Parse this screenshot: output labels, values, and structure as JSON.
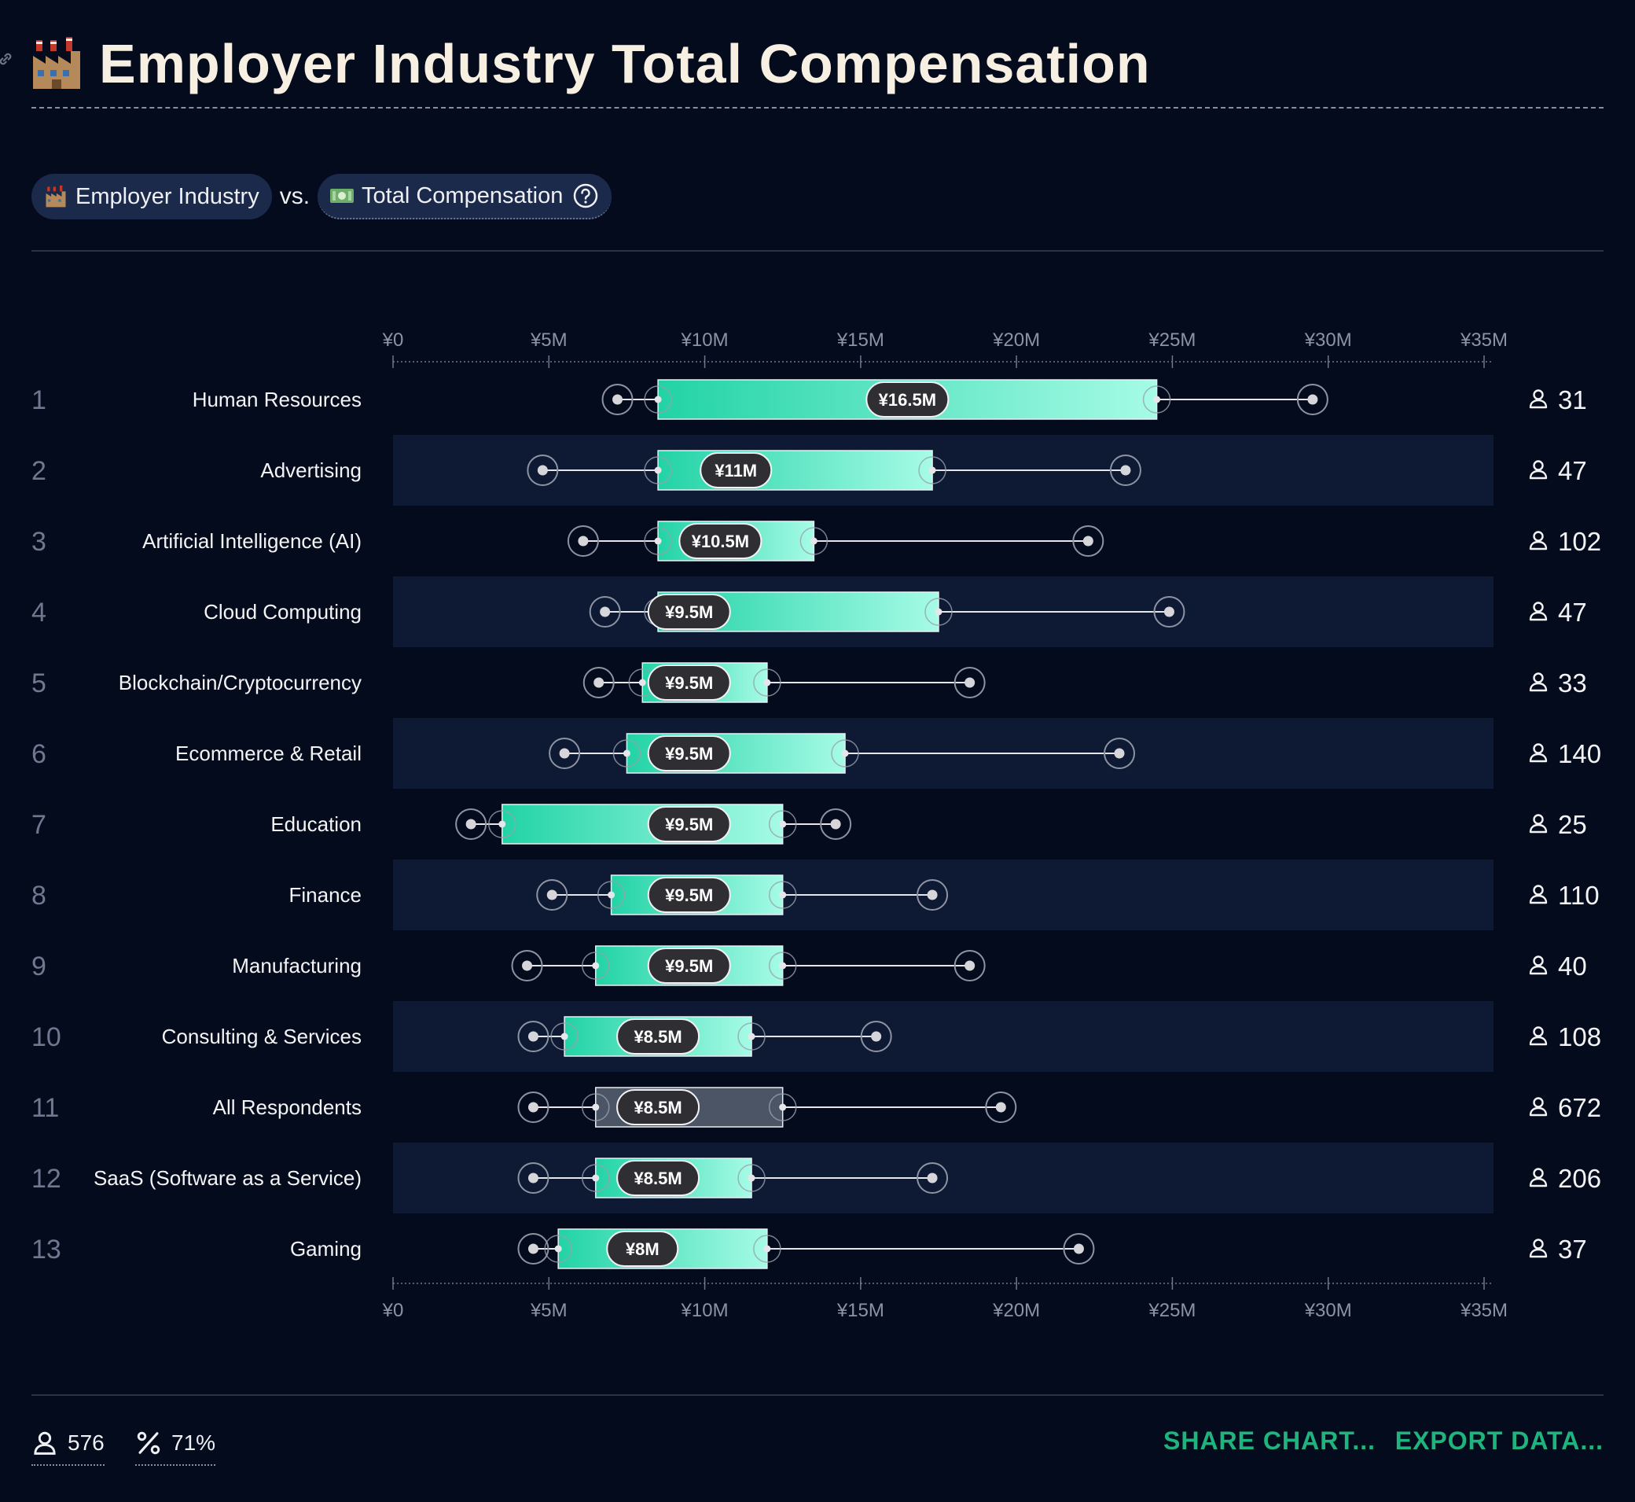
{
  "header": {
    "title": "Employer Industry Total Compensation",
    "title_icon": "factory-icon",
    "link_icon": "link-icon"
  },
  "filters": {
    "left_pill": {
      "label": "Employer Industry",
      "icon": "factory-icon"
    },
    "vs_text": "vs.",
    "right_pill": {
      "label": "Total Compensation",
      "icon": "money-icon",
      "help_icon": "question-circle-icon"
    }
  },
  "colors": {
    "background": "#040b1c",
    "band": "#0e1a33",
    "box_start": "#22d3a6",
    "box_end": "#a6fbe6",
    "overall_box": "#4b5566",
    "accent": "#1fb47e"
  },
  "chart_data": {
    "type": "box",
    "title": "",
    "x_axis": {
      "unit": "¥",
      "range": [
        0,
        35000000
      ],
      "ticks": [
        0,
        5000000,
        10000000,
        15000000,
        20000000,
        25000000,
        30000000,
        35000000
      ],
      "tick_labels": [
        "¥0",
        "¥5M",
        "¥10M",
        "¥15M",
        "¥20M",
        "¥25M",
        "¥30M",
        "¥35M"
      ]
    },
    "rows": [
      {
        "rank": "1",
        "category": "Human Resources",
        "low": 7200000,
        "q1": 8500000,
        "median": 16500000,
        "q3": 24500000,
        "high": 29500000,
        "median_label": "¥16.5M",
        "count": "31"
      },
      {
        "rank": "2",
        "category": "Advertising",
        "low": 4800000,
        "q1": 8500000,
        "median": 11000000,
        "q3": 17300000,
        "high": 23500000,
        "median_label": "¥11M",
        "count": "47"
      },
      {
        "rank": "3",
        "category": "Artificial Intelligence (AI)",
        "low": 6100000,
        "q1": 8500000,
        "median": 10500000,
        "q3": 13500000,
        "high": 22300000,
        "median_label": "¥10.5M",
        "count": "102"
      },
      {
        "rank": "4",
        "category": "Cloud Computing",
        "low": 6800000,
        "q1": 8500000,
        "median": 9500000,
        "q3": 17500000,
        "high": 24900000,
        "median_label": "¥9.5M",
        "count": "47"
      },
      {
        "rank": "5",
        "category": "Blockchain/Cryptocurrency",
        "low": 6600000,
        "q1": 8000000,
        "median": 9500000,
        "q3": 12000000,
        "high": 18500000,
        "median_label": "¥9.5M",
        "count": "33"
      },
      {
        "rank": "6",
        "category": "Ecommerce & Retail",
        "low": 5500000,
        "q1": 7500000,
        "median": 9500000,
        "q3": 14500000,
        "high": 23300000,
        "median_label": "¥9.5M",
        "count": "140"
      },
      {
        "rank": "7",
        "category": "Education",
        "low": 2500000,
        "q1": 3500000,
        "median": 9500000,
        "q3": 12500000,
        "high": 14200000,
        "median_label": "¥9.5M",
        "count": "25"
      },
      {
        "rank": "8",
        "category": "Finance",
        "low": 5100000,
        "q1": 7000000,
        "median": 9500000,
        "q3": 12500000,
        "high": 17300000,
        "median_label": "¥9.5M",
        "count": "110"
      },
      {
        "rank": "9",
        "category": "Manufacturing",
        "low": 4300000,
        "q1": 6500000,
        "median": 9500000,
        "q3": 12500000,
        "high": 18500000,
        "median_label": "¥9.5M",
        "count": "40"
      },
      {
        "rank": "10",
        "category": "Consulting & Services",
        "low": 4500000,
        "q1": 5500000,
        "median": 8500000,
        "q3": 11500000,
        "high": 15500000,
        "median_label": "¥8.5M",
        "count": "108"
      },
      {
        "rank": "11",
        "category": "All Respondents",
        "low": 4500000,
        "q1": 6500000,
        "median": 8500000,
        "q3": 12500000,
        "high": 19500000,
        "median_label": "¥8.5M",
        "count": "672",
        "overall": true
      },
      {
        "rank": "12",
        "category": "SaaS (Software as a Service)",
        "low": 4500000,
        "q1": 6500000,
        "median": 8500000,
        "q3": 11500000,
        "high": 17300000,
        "median_label": "¥8.5M",
        "count": "206"
      },
      {
        "rank": "13",
        "category": "Gaming",
        "low": 4500000,
        "q1": 5300000,
        "median": 8000000,
        "q3": 12000000,
        "high": 22000000,
        "median_label": "¥8M",
        "count": "37"
      }
    ],
    "count_icon": "person-icon"
  },
  "footer": {
    "respondents": {
      "icon": "person-icon",
      "value": "576"
    },
    "percent": {
      "icon": "percent-icon",
      "value": "71%"
    },
    "share_label": "SHARE CHART...",
    "export_label": "EXPORT DATA..."
  }
}
